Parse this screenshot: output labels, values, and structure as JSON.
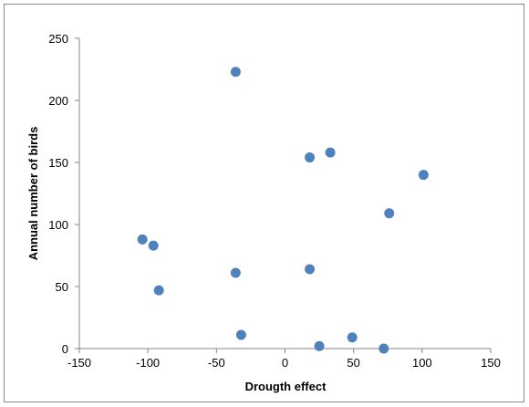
{
  "chart_data": {
    "type": "scatter",
    "title": "",
    "xlabel": "Drougth effect",
    "ylabel": "Annual number of birds",
    "xlim": [
      -150,
      150
    ],
    "ylim": [
      0,
      250
    ],
    "x_ticks": [
      -150,
      -100,
      -50,
      0,
      50,
      100,
      150
    ],
    "y_ticks": [
      0,
      50,
      100,
      150,
      200,
      250
    ],
    "grid": false,
    "legend": "none",
    "marker_color": "#4f81bd",
    "points": [
      {
        "x": -36,
        "y": 223
      },
      {
        "x": 18,
        "y": 154
      },
      {
        "x": 33,
        "y": 158
      },
      {
        "x": 101,
        "y": 140
      },
      {
        "x": 76,
        "y": 109
      },
      {
        "x": -104,
        "y": 88
      },
      {
        "x": -96,
        "y": 83
      },
      {
        "x": -36,
        "y": 61
      },
      {
        "x": 18,
        "y": 64
      },
      {
        "x": -92,
        "y": 47
      },
      {
        "x": -32,
        "y": 11
      },
      {
        "x": 25,
        "y": 2
      },
      {
        "x": 49,
        "y": 9
      },
      {
        "x": 72,
        "y": 0
      }
    ]
  }
}
